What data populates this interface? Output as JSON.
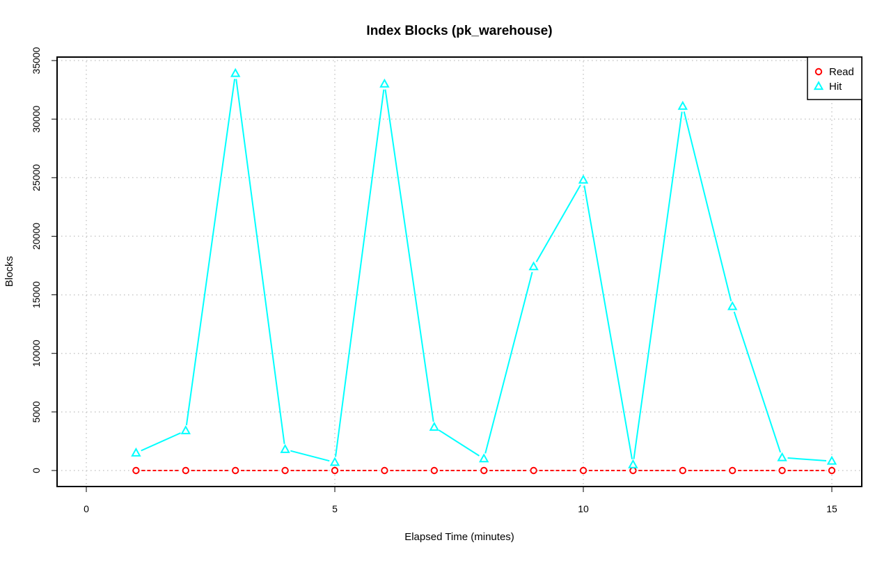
{
  "chart_data": {
    "type": "line",
    "title": "Index Blocks (pk_warehouse)",
    "xlabel": "Elapsed Time (minutes)",
    "ylabel": "Blocks",
    "xlim": [
      0,
      15
    ],
    "ylim": [
      0,
      35000
    ],
    "xticks": [
      0,
      5,
      10,
      15
    ],
    "yticks": [
      0,
      5000,
      10000,
      15000,
      20000,
      25000,
      30000,
      35000
    ],
    "grid": true,
    "legend_position": "top-right",
    "x": [
      1,
      2,
      3,
      4,
      5,
      6,
      7,
      8,
      9,
      10,
      11,
      12,
      13,
      14,
      15
    ],
    "series": [
      {
        "name": "Read",
        "color": "#ff0000",
        "marker": "circle",
        "line_style": "dashed",
        "values": [
          0,
          0,
          0,
          0,
          0,
          0,
          0,
          0,
          0,
          0,
          0,
          0,
          0,
          0,
          0
        ]
      },
      {
        "name": "Hit",
        "color": "#00ffff",
        "marker": "triangle",
        "line_style": "solid",
        "values": [
          1500,
          3400,
          33900,
          1800,
          700,
          33000,
          3700,
          1000,
          17400,
          24800,
          500,
          31100,
          14000,
          1100,
          800
        ]
      }
    ]
  }
}
